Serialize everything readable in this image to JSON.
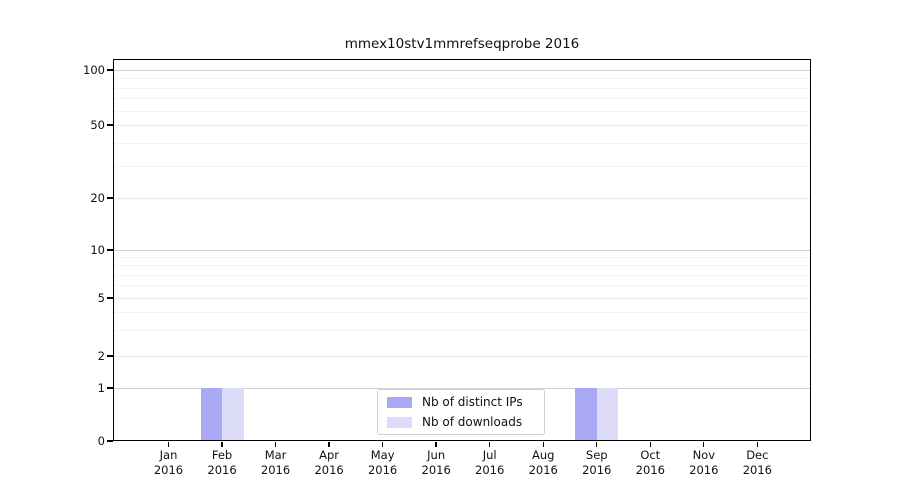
{
  "title": "mmex10stv1mmrefseqprobe 2016",
  "colors": {
    "distinct_ips": "#a9a9f4",
    "downloads": "#dcdcf9",
    "axis": "#000000",
    "grid_major": "#d0d0d0",
    "grid_minor": "#f4f4f4",
    "background": "#ffffff"
  },
  "chart_data": {
    "type": "bar",
    "title": "mmex10stv1mmrefseqprobe 2016",
    "categories": [
      "Jan 2016",
      "Feb 2016",
      "Mar 2016",
      "Apr 2016",
      "May 2016",
      "Jun 2016",
      "Jul 2016",
      "Aug 2016",
      "Sep 2016",
      "Oct 2016",
      "Nov 2016",
      "Dec 2016"
    ],
    "series": [
      {
        "name": "Nb of distinct IPs",
        "color": "#a9a9f4",
        "values": [
          0,
          1,
          0,
          0,
          0,
          0,
          0,
          0,
          1,
          0,
          0,
          0
        ]
      },
      {
        "name": "Nb of downloads",
        "color": "#dcdcf9",
        "values": [
          0,
          1,
          0,
          0,
          0,
          0,
          0,
          0,
          1,
          0,
          0,
          0
        ]
      }
    ],
    "xlabel": "",
    "ylabel": "",
    "yscale": "symlog",
    "ylim": [
      0,
      115
    ],
    "yticks": [
      0,
      1,
      2,
      5,
      10,
      20,
      50,
      100
    ],
    "ytick_labels": [
      "0",
      "1",
      "2",
      "5",
      "10",
      "20",
      "50",
      "100"
    ],
    "minor_yticks": [
      3,
      4,
      6,
      7,
      8,
      9,
      30,
      40,
      60,
      70,
      80,
      90
    ],
    "grid": "horizontal",
    "legend_position": "lower center"
  }
}
